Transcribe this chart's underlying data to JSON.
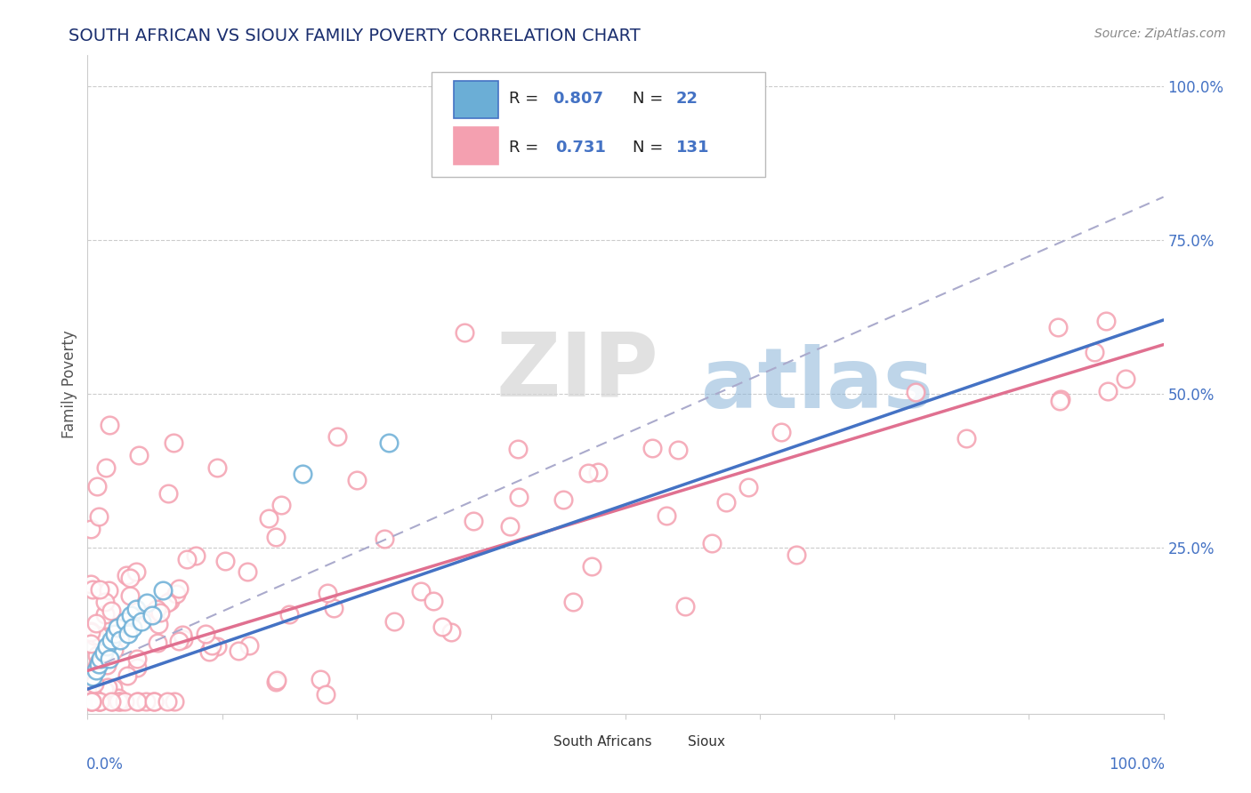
{
  "title": "SOUTH AFRICAN VS SIOUX FAMILY POVERTY CORRELATION CHART",
  "source": "Source: ZipAtlas.com",
  "ylabel": "Family Poverty",
  "color_south_african": "#6baed6",
  "color_sioux": "#f4a0b0",
  "color_blue_line": "#4472c4",
  "color_pink_line": "#e07090",
  "color_dashed_line": "#aaaacc",
  "color_title": "#1a2e6e",
  "color_right_axis": "#4472c4",
  "watermark_zip_color": "#cccccc",
  "watermark_atlas_color": "#a0b8e0"
}
